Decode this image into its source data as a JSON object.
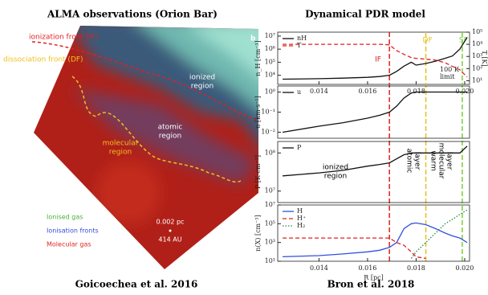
{
  "left": {
    "title": "ALMA observations (Orion Bar)",
    "caption": "Goicoechea et al. 2016",
    "panel_letter": "b",
    "front_labels": [
      "ionization front (IF)",
      "dissociation front (DF)"
    ],
    "regions": [
      [
        "ionized",
        "region"
      ],
      [
        "atomic",
        "region"
      ],
      [
        "molecular",
        "region"
      ]
    ],
    "legend": [
      {
        "name": "Ionised gas",
        "color": "#4caf3a"
      },
      {
        "name": "Ionisation fronts",
        "color": "#3a4bd8"
      },
      {
        "name": "Molecular gas",
        "color": "#e0281e"
      }
    ],
    "scale": [
      "0.002 pc",
      "414 AU"
    ]
  },
  "right": {
    "title": "Dynamical PDR model",
    "caption": "Bron et al. 2018"
  },
  "chart_data": [
    {
      "type": "line",
      "ylabel": "n_H [cm⁻³]",
      "y2label": "T [K]",
      "log": true,
      "x": [
        0.0125,
        0.014,
        0.015,
        0.016,
        0.0165,
        0.0169,
        0.0172,
        0.0175,
        0.0178,
        0.018,
        0.0184,
        0.0188,
        0.0192,
        0.0195,
        0.0198,
        0.0201
      ],
      "xlim": [
        0.0123,
        0.0202
      ],
      "xticks": [
        0.014,
        0.016,
        0.018,
        {
          "value": 0.02,
          "label": "0.020"
        }
      ],
      "ylim": [
        2000,
        20000000
      ],
      "yticks": [
        {
          "value": 10000,
          "label": "10⁴"
        },
        {
          "value": 100000,
          "label": "10⁵"
        },
        {
          "value": 1000000,
          "label": "10⁶"
        },
        {
          "value": 10000000,
          "label": "10⁷"
        }
      ],
      "y2lim": [
        5,
        100000
      ],
      "y2ticks": [
        {
          "value": 10,
          "label": "10¹"
        },
        {
          "value": 100,
          "label": "10²"
        },
        {
          "value": 1000,
          "label": "10³"
        },
        {
          "value": 10000,
          "label": "10⁴"
        },
        {
          "value": 100000,
          "label": "10⁵"
        }
      ],
      "series": [
        {
          "name": "nH",
          "color": "#111111",
          "dash": "solid",
          "values": [
            5000,
            5500,
            6000,
            7000,
            8000,
            10000,
            20000,
            50000,
            100000,
            60000,
            80000,
            120000,
            200000,
            300000,
            1000000,
            8000000
          ]
        },
        {
          "name": "T",
          "color": "#e02020",
          "dash": "dashed",
          "axis": "y2",
          "values": [
            10000,
            10000,
            10000,
            10000,
            10000,
            9000,
            3000,
            1500,
            800,
            700,
            600,
            500,
            300,
            150,
            80,
            20
          ]
        }
      ],
      "vlines": [
        {
          "name": "IF",
          "x": 0.0169,
          "color": "#e02020"
        },
        {
          "name": "DF",
          "x": 0.0184,
          "color": "#e6c020"
        },
        {
          "name": "SF",
          "x": 0.0199,
          "color": "#7ccf3a"
        }
      ],
      "annotations": [
        "100 K",
        "limit"
      ]
    },
    {
      "type": "line",
      "ylabel": "u [km·s⁻¹]",
      "log": true,
      "x": [
        0.0125,
        0.014,
        0.015,
        0.016,
        0.0165,
        0.0169,
        0.0172,
        0.0175,
        0.0178,
        0.018,
        0.0184,
        0.0188,
        0.0192,
        0.0195,
        0.0198,
        0.0201
      ],
      "xlim": [
        0.0123,
        0.0202
      ],
      "ylim": [
        0.005,
        2
      ],
      "yticks": [
        {
          "value": 0.01,
          "label": "10⁻²"
        },
        {
          "value": 0.1,
          "label": "10⁻¹"
        },
        {
          "value": 1,
          "label": "10⁰"
        }
      ],
      "series": [
        {
          "name": "u",
          "color": "#111111",
          "dash": "solid",
          "values": [
            0.01,
            0.02,
            0.03,
            0.05,
            0.07,
            0.1,
            0.2,
            0.5,
            0.9,
            1,
            1,
            1,
            1,
            1,
            1,
            1
          ]
        }
      ]
    },
    {
      "type": "line",
      "ylabel": "P [K·cm⁻³]",
      "log": true,
      "x": [
        0.0125,
        0.014,
        0.015,
        0.016,
        0.0165,
        0.0169,
        0.0172,
        0.0175,
        0.0178,
        0.018,
        0.0184,
        0.0188,
        0.0192,
        0.0195,
        0.0198,
        0.0201
      ],
      "xlim": [
        0.0123,
        0.0202
      ],
      "ylim": [
        5000000,
        200000000
      ],
      "yticks": [
        {
          "value": 10000000,
          "label": "10⁷"
        },
        {
          "value": 100000000,
          "label": "10⁸"
        }
      ],
      "series": [
        {
          "name": "P",
          "color": "#111111",
          "dash": "solid",
          "values": [
            25000000,
            30000000,
            35000000,
            45000000,
            50000000,
            55000000,
            70000000,
            90000000,
            100000000,
            100000000,
            100000000,
            100000000,
            100000000,
            100000000,
            100000000,
            150000000
          ]
        }
      ],
      "annotations": [
        [
          "ionized",
          "region"
        ],
        [
          "atomic",
          "layer"
        ],
        [
          "warm",
          "molecular",
          "layer"
        ]
      ]
    },
    {
      "type": "line",
      "ylabel": "n(X) [cm⁻³]",
      "xlabel": "R [pc]",
      "log": true,
      "x": [
        0.0125,
        0.014,
        0.015,
        0.016,
        0.0165,
        0.0169,
        0.0172,
        0.0175,
        0.0178,
        0.018,
        0.0184,
        0.0188,
        0.0192,
        0.0195,
        0.0198,
        0.0201
      ],
      "xlim": [
        0.0123,
        0.0202
      ],
      "xticks": [
        0.014,
        0.016,
        0.018,
        {
          "value": 0.02,
          "label": "0.020"
        }
      ],
      "ylim": [
        10,
        10000000
      ],
      "yticks": [
        {
          "value": 10,
          "label": "10¹"
        },
        {
          "value": 1000,
          "label": "10³"
        },
        {
          "value": 100000,
          "label": "10⁵"
        },
        {
          "value": 10000000,
          "label": "10⁷"
        }
      ],
      "series": [
        {
          "name": "H",
          "color": "#3050e0",
          "dash": "solid",
          "values": [
            30,
            40,
            60,
            100,
            150,
            300,
            1000,
            30000,
            100000,
            120000,
            80000,
            30000,
            10000,
            5000,
            3000,
            1000
          ]
        },
        {
          "name": "H⁺",
          "color": "#e02020",
          "dash": "dashed",
          "values": [
            3000,
            3000,
            3000,
            3000,
            3000,
            3000,
            1000,
            500,
            100,
            30,
            20,
            null,
            null,
            null,
            null,
            null
          ]
        },
        {
          "name": "H₂",
          "color": "#2a8a3a",
          "dash": "dotted",
          "values": [
            null,
            null,
            null,
            null,
            null,
            null,
            null,
            null,
            20,
            100,
            1000,
            10000,
            100000,
            300000,
            1000000,
            3000000
          ]
        }
      ]
    }
  ]
}
